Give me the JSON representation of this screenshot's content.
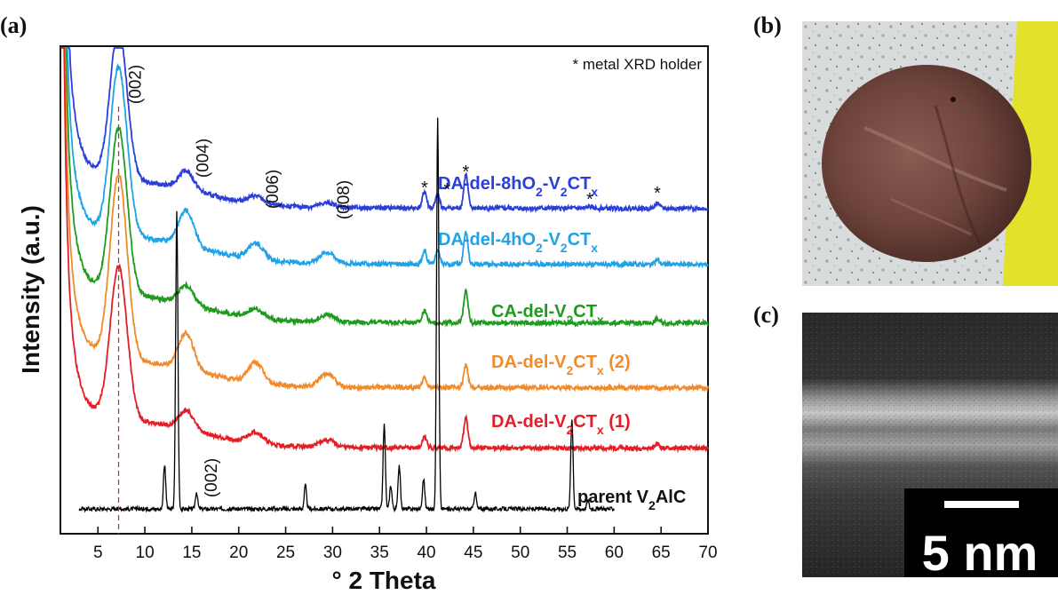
{
  "panels": {
    "a": "(a)",
    "b": "(b)",
    "c": "(c)"
  },
  "colors": {
    "series_8h": "#2b3fd8",
    "series_4h": "#1fa3e6",
    "series_ca": "#1e9b1e",
    "series_da2": "#f08b2b",
    "series_da1": "#e21f26",
    "series_parent": "#000000",
    "guide_line": "#c0392b"
  },
  "chart_data": {
    "type": "line",
    "xlabel": "° 2 Theta",
    "ylabel": "Intensity (a.u.)",
    "xlim": [
      1,
      70
    ],
    "xticks": [
      5,
      10,
      15,
      20,
      25,
      30,
      35,
      40,
      45,
      50,
      55,
      60,
      65,
      70
    ],
    "yticks_shown": false,
    "annotation": "* metal XRD holder",
    "reflections": [
      {
        "label": "(002)",
        "x": 7.2
      },
      {
        "label": "(004)",
        "x": 14.4
      },
      {
        "label": "(006)",
        "x": 21.8
      },
      {
        "label": "(008)",
        "x": 29.4
      },
      {
        "label": "(002)",
        "x": 15.3
      }
    ],
    "holder_peaks": [
      39.8,
      42.2,
      44.2,
      57.4,
      64.6
    ],
    "series": [
      {
        "name": "DA-del-8hO2-V2CTx",
        "label_parts": [
          "DA-del-8hO",
          "2",
          "-V",
          "2",
          "CT",
          "x"
        ],
        "color_key": "series_8h",
        "baseline": 0.9,
        "peaks": [
          [
            7.2,
            4.05
          ],
          [
            14.4,
            0.5
          ],
          [
            21.8,
            0.2
          ],
          [
            29.4,
            0.12
          ],
          [
            39.8,
            0.45
          ],
          [
            41.2,
            0.35
          ],
          [
            44.2,
            0.9
          ],
          [
            57.4,
            0.05
          ],
          [
            64.6,
            0.15
          ]
        ]
      },
      {
        "name": "DA-del-4hO2-V2CTx",
        "label_parts": [
          "DA-del-4hO",
          "2",
          "-V",
          "2",
          "CT",
          "x"
        ],
        "color_key": "series_4h",
        "baseline": 0.9,
        "peaks": [
          [
            7.2,
            4.5
          ],
          [
            14.4,
            0.95
          ],
          [
            21.8,
            0.45
          ],
          [
            29.4,
            0.3
          ],
          [
            39.8,
            0.35
          ],
          [
            41.2,
            0.35
          ],
          [
            44.2,
            0.85
          ],
          [
            64.6,
            0.12
          ]
        ]
      },
      {
        "name": "CA-del-V2CTx",
        "label_parts": [
          "CA-del-V",
          "2",
          "CT",
          "x"
        ],
        "color_key": "series_ca",
        "baseline": 0.9,
        "peaks": [
          [
            7.2,
            4.45
          ],
          [
            14.4,
            0.5
          ],
          [
            21.8,
            0.25
          ],
          [
            29.4,
            0.2
          ],
          [
            39.8,
            0.35
          ],
          [
            44.2,
            0.9
          ],
          [
            64.6,
            0.1
          ]
        ]
      },
      {
        "name": "DA-del-V2CTx (2)",
        "label_parts": [
          "DA-del-V",
          "2",
          "CT",
          "x",
          " (2)"
        ],
        "color_key": "series_da2",
        "baseline": 0.9,
        "peaks": [
          [
            7.2,
            4.95
          ],
          [
            14.4,
            0.95
          ],
          [
            21.8,
            0.55
          ],
          [
            29.4,
            0.35
          ],
          [
            39.8,
            0.25
          ],
          [
            44.2,
            0.6
          ]
        ]
      },
      {
        "name": "DA-del-V2CTx (1)",
        "label_parts": [
          "DA-del-V",
          "2",
          "CT",
          "x",
          " (1)"
        ],
        "color_key": "series_da1",
        "baseline": 0.9,
        "peaks": [
          [
            7.2,
            4.1
          ],
          [
            14.4,
            0.5
          ],
          [
            21.8,
            0.3
          ],
          [
            29.4,
            0.2
          ],
          [
            39.8,
            0.3
          ],
          [
            44.2,
            0.8
          ],
          [
            64.6,
            0.12
          ]
        ]
      },
      {
        "name": "parent V2AlC",
        "label_parts": [
          "parent V",
          "2",
          "AlC"
        ],
        "color_key": "series_parent",
        "baseline": 0.0,
        "peaks": [
          [
            12.1,
            1.3
          ],
          [
            13.4,
            8.8
          ],
          [
            15.5,
            0.5
          ],
          [
            27.1,
            0.7
          ],
          [
            35.5,
            2.5
          ],
          [
            36.2,
            0.7
          ],
          [
            37.1,
            1.3
          ],
          [
            39.7,
            0.9
          ],
          [
            41.2,
            11.6
          ],
          [
            45.2,
            0.5
          ],
          [
            55.5,
            2.7
          ],
          [
            57.2,
            0.25
          ]
        ]
      }
    ]
  },
  "scale_bar": "5 nm"
}
